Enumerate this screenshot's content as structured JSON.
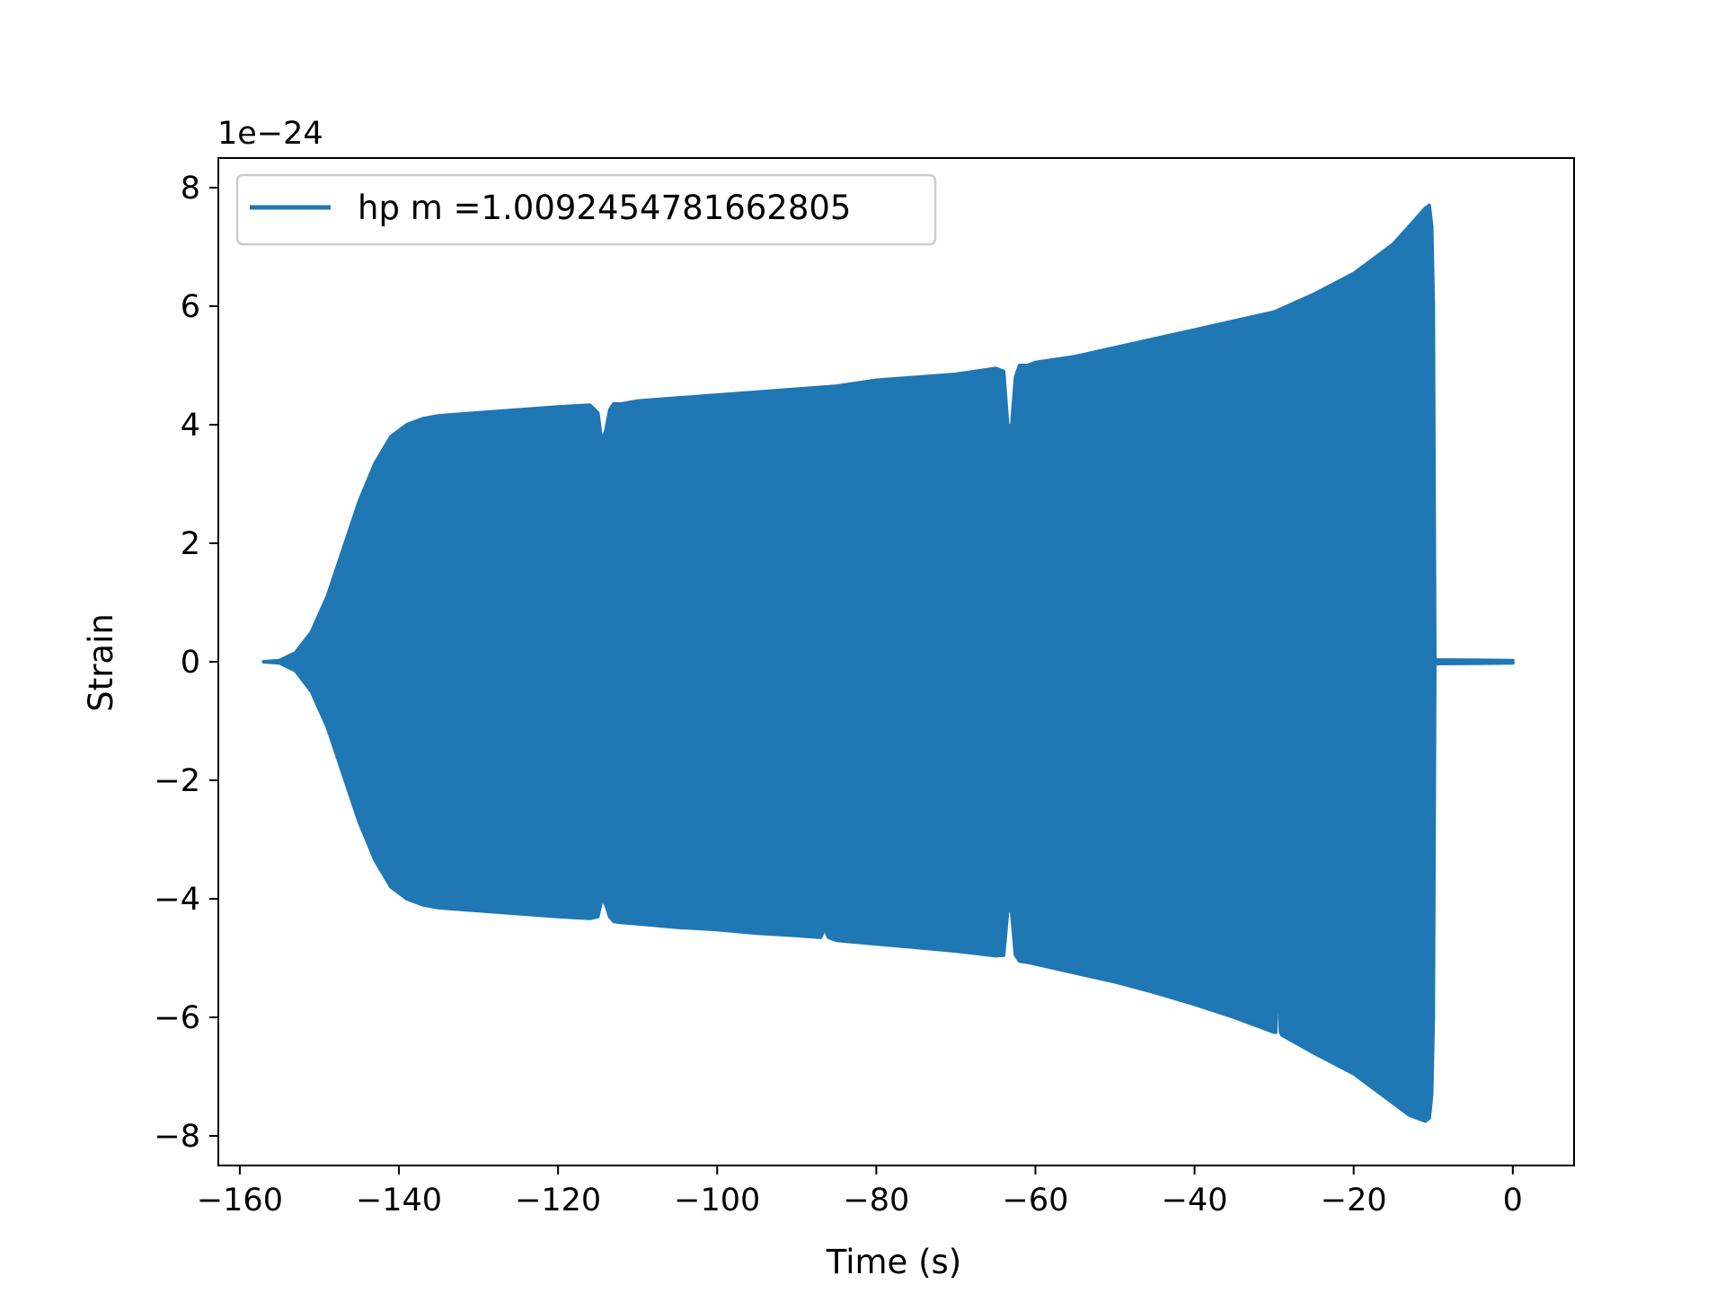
{
  "chart_data": {
    "type": "line",
    "title": "",
    "xlabel": "Time (s)",
    "ylabel": "Strain",
    "y_offset_text": "1e−24",
    "xlim": [
      -162.7,
      7.7
    ],
    "ylim": [
      -8.5,
      8.5
    ],
    "y_scale_factor": "1e-24",
    "xticks": [
      -160,
      -140,
      -120,
      -100,
      -80,
      -60,
      -40,
      -20,
      0
    ],
    "xtick_labels": [
      "−160",
      "−140",
      "−120",
      "−100",
      "−80",
      "−60",
      "−40",
      "−20",
      "0"
    ],
    "yticks": [
      -8,
      -6,
      -4,
      -2,
      0,
      2,
      4,
      6,
      8
    ],
    "ytick_labels": [
      "−8",
      "−6",
      "−4",
      "−2",
      "0",
      "2",
      "4",
      "6",
      "8"
    ],
    "grid": false,
    "legend_position": "top-left",
    "series": [
      {
        "name": "hp m =1.0092454781662805",
        "color": "#1f77b4",
        "upper_envelope": {
          "x": [
            -157,
            -155,
            -153,
            -151,
            -149,
            -147,
            -145,
            -143,
            -141,
            -139,
            -137,
            -135,
            -130,
            -125,
            -120,
            -116,
            -115,
            -114.5,
            -114,
            -113.5,
            -113,
            -112,
            -110,
            -105,
            -100,
            -95,
            -90,
            -85,
            -80,
            -75,
            -70,
            -65,
            -64,
            -63.5,
            -63,
            -62.5,
            -62,
            -61,
            -60,
            -55,
            -50,
            -45,
            -40,
            -35,
            -30,
            -25,
            -20,
            -15,
            -13,
            -11,
            -10.5,
            -10.2,
            -10,
            -9.8,
            -9.5,
            0
          ],
          "y": [
            0.0,
            0.02,
            0.15,
            0.5,
            1.1,
            1.9,
            2.7,
            3.35,
            3.8,
            4.0,
            4.1,
            4.15,
            4.2,
            4.25,
            4.3,
            4.33,
            4.2,
            3.7,
            3.9,
            4.25,
            4.35,
            4.35,
            4.4,
            4.45,
            4.5,
            4.55,
            4.6,
            4.65,
            4.75,
            4.8,
            4.85,
            4.95,
            4.9,
            4.0,
            3.95,
            4.8,
            5.0,
            5.0,
            5.05,
            5.15,
            5.3,
            5.45,
            5.6,
            5.75,
            5.9,
            6.2,
            6.55,
            7.05,
            7.35,
            7.65,
            7.7,
            7.35,
            6.0,
            0.05,
            0.03,
            0.02
          ]
        },
        "lower_envelope": {
          "x": [
            -157,
            -155,
            -153,
            -151,
            -149,
            -147,
            -145,
            -143,
            -141,
            -139,
            -137,
            -135,
            -130,
            -125,
            -120,
            -116,
            -115,
            -114.5,
            -114,
            -113.5,
            -113,
            -112,
            -110,
            -105,
            -100,
            -95,
            -90,
            -87,
            -86.5,
            -86,
            -85,
            -80,
            -75,
            -70,
            -65,
            -64,
            -63.5,
            -63,
            -62.5,
            -62,
            -61,
            -60,
            -55,
            -50,
            -45,
            -40,
            -35,
            -30,
            -29.8,
            -29.5,
            -29.2,
            -29,
            -25,
            -20,
            -15,
            -13,
            -11,
            -10.5,
            -10.2,
            -10,
            -9.8,
            -9.5,
            0
          ],
          "y": [
            0.0,
            -0.02,
            -0.15,
            -0.5,
            -1.1,
            -1.9,
            -2.7,
            -3.35,
            -3.8,
            -4.0,
            -4.1,
            -4.15,
            -4.2,
            -4.25,
            -4.3,
            -4.33,
            -4.3,
            -4.0,
            -4.1,
            -4.3,
            -4.38,
            -4.4,
            -4.42,
            -4.48,
            -4.52,
            -4.58,
            -4.62,
            -4.65,
            -4.5,
            -4.65,
            -4.7,
            -4.76,
            -4.82,
            -4.88,
            -4.96,
            -4.95,
            -4.2,
            -4.2,
            -4.95,
            -5.05,
            -5.07,
            -5.1,
            -5.25,
            -5.4,
            -5.58,
            -5.78,
            -6.0,
            -6.25,
            -6.25,
            -4.9,
            -6.25,
            -6.3,
            -6.6,
            -6.95,
            -7.45,
            -7.65,
            -7.75,
            -7.7,
            -7.3,
            -6.0,
            -0.05,
            -0.03,
            -0.02
          ]
        }
      }
    ]
  }
}
